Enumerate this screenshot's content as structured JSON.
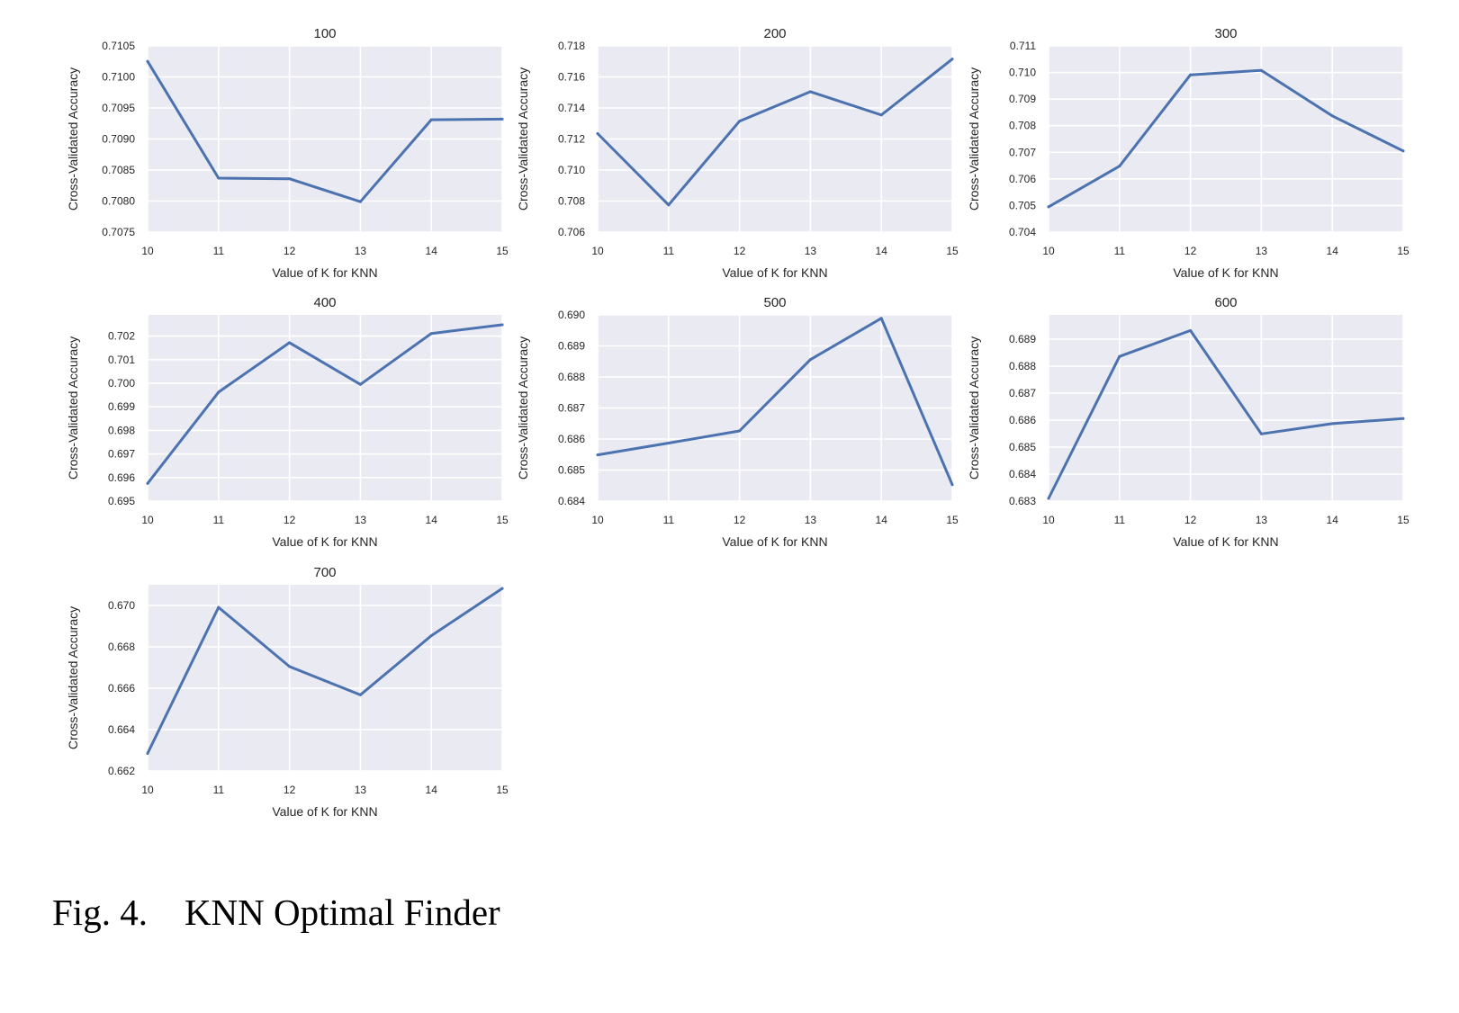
{
  "caption": "Fig. 4.    KNN Optimal Finder",
  "chart_data": [
    {
      "type": "line",
      "title": "100",
      "xlabel": "Value of K for KNN",
      "ylabel": "Cross-Validated Accuracy",
      "x": [
        10,
        11,
        12,
        13,
        14,
        15
      ],
      "values": [
        0.71025,
        0.70837,
        0.70836,
        0.70799,
        0.70931,
        0.70932
      ],
      "xlim": [
        10,
        15
      ],
      "ylim": [
        0.7075,
        0.7105
      ],
      "xticks": [
        "10",
        "11",
        "12",
        "13",
        "14",
        "15"
      ],
      "yticks": [
        "0.7075",
        "0.7080",
        "0.7085",
        "0.7090",
        "0.7095",
        "0.7100",
        "0.7105"
      ],
      "grid": true
    },
    {
      "type": "line",
      "title": "200",
      "xlabel": "Value of K for KNN",
      "ylabel": "Cross-Validated Accuracy",
      "x": [
        10,
        11,
        12,
        13,
        14,
        15
      ],
      "values": [
        0.71235,
        0.70775,
        0.71315,
        0.71505,
        0.71355,
        0.71715
      ],
      "xlim": [
        10,
        15
      ],
      "ylim": [
        0.706,
        0.718
      ],
      "xticks": [
        "10",
        "11",
        "12",
        "13",
        "14",
        "15"
      ],
      "yticks": [
        "0.706",
        "0.708",
        "0.710",
        "0.712",
        "0.714",
        "0.716",
        "0.718"
      ],
      "grid": true
    },
    {
      "type": "line",
      "title": "300",
      "xlabel": "Value of K for KNN",
      "ylabel": "Cross-Validated Accuracy",
      "x": [
        10,
        11,
        12,
        13,
        14,
        15
      ],
      "values": [
        0.70495,
        0.70648,
        0.70991,
        0.71008,
        0.70837,
        0.70705
      ],
      "xlim": [
        10,
        15
      ],
      "ylim": [
        0.704,
        0.711
      ],
      "xticks": [
        "10",
        "11",
        "12",
        "13",
        "14",
        "15"
      ],
      "yticks": [
        "0.704",
        "0.705",
        "0.706",
        "0.707",
        "0.708",
        "0.709",
        "0.710",
        "0.711"
      ],
      "grid": true
    },
    {
      "type": "line",
      "title": "400",
      "xlabel": "Value of K for KNN",
      "ylabel": "Cross-Validated Accuracy",
      "x": [
        10,
        11,
        12,
        13,
        14,
        15
      ],
      "values": [
        0.69575,
        0.69962,
        0.70172,
        0.69995,
        0.70211,
        0.70248
      ],
      "xlim": [
        10,
        15
      ],
      "ylim": [
        0.695,
        0.7029
      ],
      "xticks": [
        "10",
        "11",
        "12",
        "13",
        "14",
        "15"
      ],
      "yticks": [
        "0.695",
        "0.696",
        "0.697",
        "0.698",
        "0.699",
        "0.700",
        "0.701",
        "0.702"
      ],
      "grid": true
    },
    {
      "type": "line",
      "title": "500",
      "xlabel": "Value of K for KNN",
      "ylabel": "Cross-Validated Accuracy",
      "x": [
        10,
        11,
        12,
        13,
        14,
        15
      ],
      "values": [
        0.68549,
        0.68587,
        0.68626,
        0.68856,
        0.68989,
        0.68453
      ],
      "xlim": [
        10,
        15
      ],
      "ylim": [
        0.684,
        0.69
      ],
      "xticks": [
        "10",
        "11",
        "12",
        "13",
        "14",
        "15"
      ],
      "yticks": [
        "0.684",
        "0.685",
        "0.686",
        "0.687",
        "0.688",
        "0.689",
        "0.690"
      ],
      "grid": true
    },
    {
      "type": "line",
      "title": "600",
      "xlabel": "Value of K for KNN",
      "ylabel": "Cross-Validated Accuracy",
      "x": [
        10,
        11,
        12,
        13,
        14,
        15
      ],
      "values": [
        0.6831,
        0.68836,
        0.68932,
        0.68549,
        0.68587,
        0.68606
      ],
      "xlim": [
        10,
        15
      ],
      "ylim": [
        0.683,
        0.6899
      ],
      "xticks": [
        "10",
        "11",
        "12",
        "13",
        "14",
        "15"
      ],
      "yticks": [
        "0.683",
        "0.684",
        "0.685",
        "0.686",
        "0.687",
        "0.688",
        "0.689"
      ],
      "grid": true
    },
    {
      "type": "line",
      "title": "700",
      "xlabel": "Value of K for KNN",
      "ylabel": "Cross-Validated Accuracy",
      "x": [
        10,
        11,
        12,
        13,
        14,
        15
      ],
      "values": [
        0.66285,
        0.66991,
        0.66705,
        0.66568,
        0.66854,
        0.67082
      ],
      "xlim": [
        10,
        15
      ],
      "ylim": [
        0.662,
        0.671
      ],
      "xticks": [
        "10",
        "11",
        "12",
        "13",
        "14",
        "15"
      ],
      "yticks": [
        "0.662",
        "0.664",
        "0.666",
        "0.668",
        "0.670"
      ],
      "grid": true
    }
  ]
}
